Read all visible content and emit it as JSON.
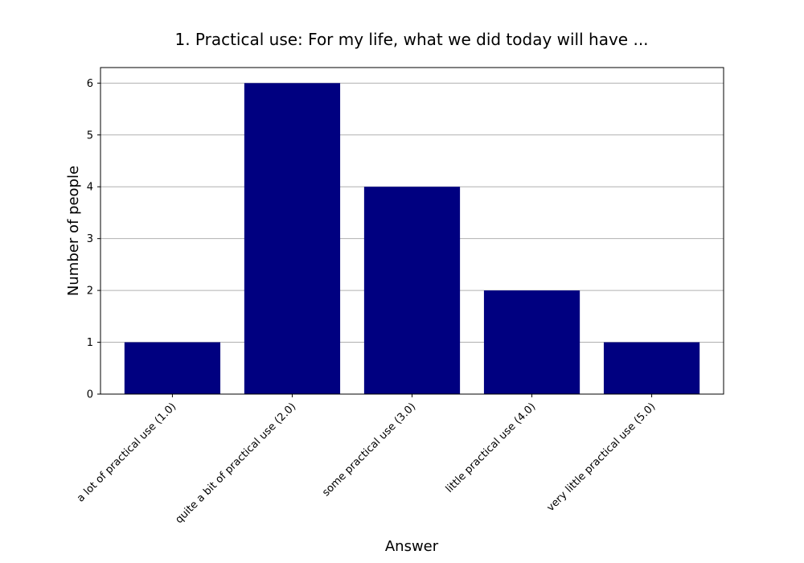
{
  "chart_data": {
    "type": "bar",
    "title": "1. Practical use: For my life, what we did today will have ...",
    "xlabel": "Answer",
    "ylabel": "Number of people",
    "categories": [
      "a lot of practical use (1.0)",
      "quite a bit of practical use (2.0)",
      "some practical use (3.0)",
      "little practical use (4.0)",
      "very little practical use (5.0)"
    ],
    "values": [
      1,
      6,
      4,
      2,
      1
    ],
    "ylim": [
      0,
      6.3
    ],
    "yticks": [
      0,
      1,
      2,
      3,
      4,
      5,
      6
    ],
    "grid": "horizontal",
    "bar_color": "#000080",
    "grid_color": "#b0b0b0"
  }
}
